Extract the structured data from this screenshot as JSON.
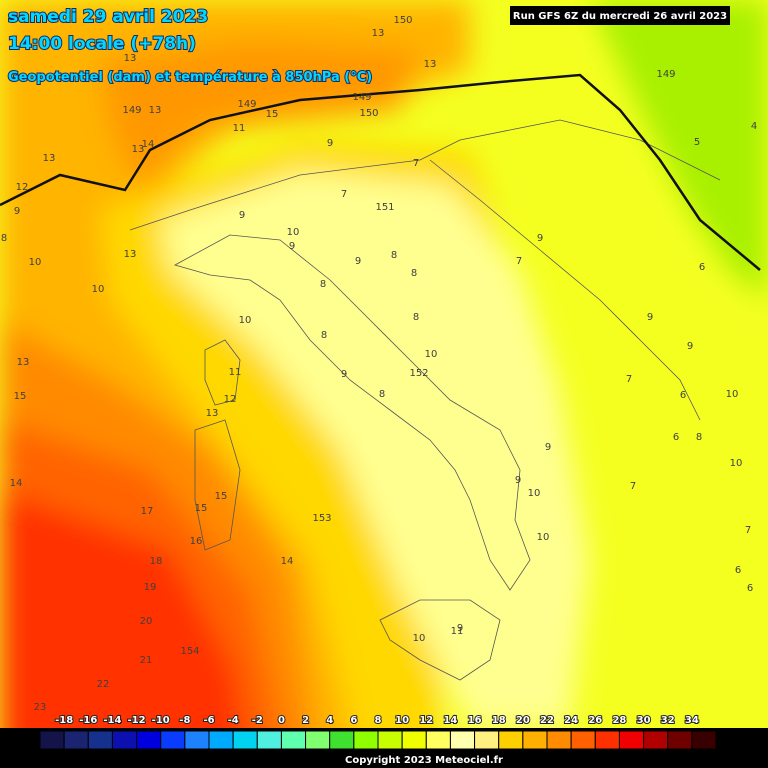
{
  "header": {
    "date": "samedi 29 avril 2023",
    "time": "14:00 locale (+78h)",
    "subtitle": "Geopotentiel (dam) et température à 850hPa (°C)",
    "run": "Run GFS 6Z du mercredi 26 avril 2023"
  },
  "map_labels": [
    150,
    13,
    13,
    149,
    4,
    5,
    149,
    150,
    149,
    13,
    149,
    15,
    13,
    13,
    12,
    9,
    14,
    13,
    11,
    9,
    7,
    7,
    151,
    9,
    10,
    9,
    8,
    10,
    13,
    10,
    9,
    7,
    6,
    8,
    9,
    8,
    8,
    10,
    8,
    9,
    9,
    8,
    10,
    152,
    11,
    9,
    8,
    12,
    13,
    7,
    6,
    10,
    13,
    15,
    6,
    8,
    9,
    10,
    14,
    9,
    10,
    7,
    15,
    15,
    17,
    153,
    10,
    16,
    14,
    18,
    19,
    20,
    9,
    11,
    10,
    21,
    154,
    22,
    23,
    7,
    6,
    6
  ],
  "legend": {
    "labels": [
      -18,
      -16,
      -14,
      -12,
      -10,
      -8,
      -6,
      -4,
      -2,
      0,
      2,
      4,
      6,
      8,
      10,
      12,
      14,
      16,
      18,
      20,
      22,
      24,
      26,
      28,
      30,
      32,
      34
    ],
    "colors": [
      "#14144a",
      "#1a2470",
      "#16308e",
      "#0c10b0",
      "#0000dc",
      "#0a3cff",
      "#1e82ff",
      "#00aaff",
      "#00d2f0",
      "#50f0e0",
      "#60ffb0",
      "#80ff70",
      "#40e030",
      "#90ff00",
      "#c8ff00",
      "#f0ff00",
      "#ffff60",
      "#ffffb0",
      "#fff080",
      "#ffd000",
      "#ffb000",
      "#ff8c00",
      "#ff6000",
      "#ff3000",
      "#f00000",
      "#b00000",
      "#700000",
      "#380000"
    ]
  },
  "copyright": "Copyright 2023 Meteociel.fr"
}
